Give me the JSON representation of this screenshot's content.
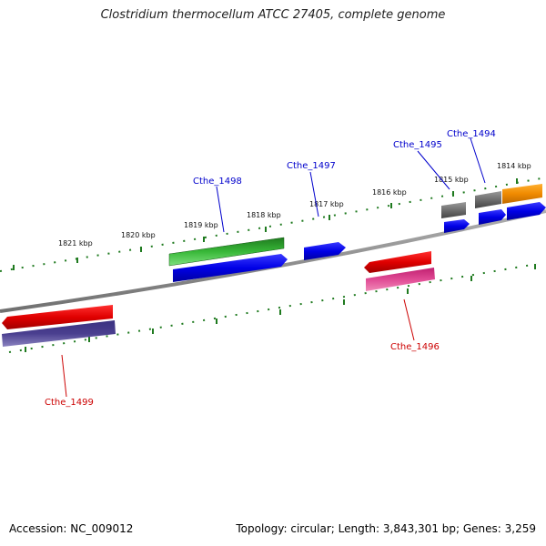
{
  "title": "Clostridium thermocellum ATCC 27405, complete genome",
  "footer": {
    "accession": "Accession: NC_009012",
    "topology": "Topology: circular; Length: 3,843,301 bp; Genes: 3,259"
  },
  "colors": {
    "backbone": "#8a8a8a",
    "tick": "#1f7a1f",
    "gene_label_forward": "#0000cc",
    "gene_label_reverse": "#cc0000",
    "cds_blue": "#0000e6",
    "gene_green": "#2a9a2a",
    "gene_red": "#e00000",
    "cds_pink": "#e0408a",
    "cds_purple": "#4a3f8f",
    "gene_gray": "#6e6e6e",
    "gene_orange": "#f08a00"
  },
  "kbp_labels": [
    "1814 kbp",
    "1815 kbp",
    "1816 kbp",
    "1817 kbp",
    "1818 kbp",
    "1819 kbp",
    "1820 kbp",
    "1821 kbp"
  ],
  "gene_labels": {
    "cthe_1494": "Cthe_1494",
    "cthe_1495": "Cthe_1495",
    "cthe_1496": "Cthe_1496",
    "cthe_1497": "Cthe_1497",
    "cthe_1498": "Cthe_1498",
    "cthe_1499": "Cthe_1499"
  }
}
